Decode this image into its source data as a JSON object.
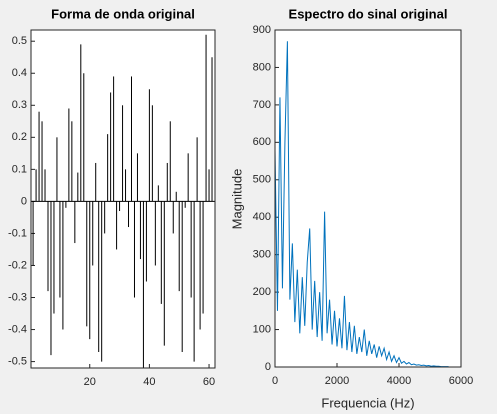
{
  "chart_data": [
    {
      "type": "stem",
      "title": "Forma de onda original",
      "color": "#000000",
      "x": [
        1,
        2,
        3,
        4,
        5,
        6,
        7,
        8,
        9,
        10,
        11,
        12,
        13,
        14,
        15,
        16,
        17,
        18,
        19,
        20,
        21,
        22,
        23,
        24,
        25,
        26,
        27,
        28,
        29,
        30,
        31,
        32,
        33,
        34,
        35,
        36,
        37,
        38,
        39,
        40,
        41,
        42,
        43,
        44,
        45,
        46,
        47,
        48,
        49,
        50,
        51,
        52,
        53,
        54,
        55,
        56,
        57,
        58,
        59,
        60,
        61
      ],
      "values": [
        -0.2,
        0.1,
        0.28,
        0.25,
        0.1,
        -0.28,
        -0.48,
        -0.35,
        0.2,
        -0.3,
        -0.4,
        -0.02,
        0.29,
        0.25,
        -0.13,
        0.09,
        0.49,
        0.4,
        -0.39,
        -0.43,
        -0.2,
        0.12,
        -0.47,
        -0.5,
        -0.1,
        0.21,
        0.34,
        0.39,
        -0.15,
        -0.03,
        0.3,
        0.1,
        -0.08,
        0.39,
        -0.3,
        0.15,
        -0.18,
        -0.52,
        -0.25,
        0.35,
        0.3,
        -0.2,
        0.05,
        -0.32,
        -0.45,
        0.12,
        0.25,
        -0.1,
        0.03,
        -0.28,
        -0.47,
        -0.02,
        0.15,
        -0.3,
        -0.5,
        0.2,
        -0.4,
        -0.35,
        0.52,
        0.1,
        0.45
      ],
      "xlim": [
        0.3,
        62
      ],
      "ylim": [
        -0.52,
        0.535
      ],
      "xticks": [
        20,
        40,
        60
      ],
      "yticks": [
        -0.5,
        -0.4,
        -0.3,
        -0.2,
        -0.1,
        0,
        0.1,
        0.2,
        0.3,
        0.4,
        0.5
      ]
    },
    {
      "type": "line",
      "title": "Espectro do sinal original",
      "color": "#0072bd",
      "xlabel": "Frequencia (Hz)",
      "ylabel": "Magnitude",
      "x": [
        0,
        80,
        160,
        240,
        320,
        400,
        480,
        560,
        640,
        720,
        800,
        880,
        960,
        1040,
        1120,
        1200,
        1280,
        1360,
        1440,
        1520,
        1600,
        1680,
        1760,
        1840,
        1920,
        2000,
        2080,
        2160,
        2240,
        2320,
        2400,
        2480,
        2560,
        2640,
        2720,
        2800,
        2880,
        2960,
        3040,
        3120,
        3200,
        3280,
        3360,
        3440,
        3520,
        3600,
        3680,
        3760,
        3840,
        3920,
        4000,
        4080,
        4160,
        4240,
        4320,
        4400,
        4480,
        4560,
        4640,
        4720,
        4800,
        4880,
        4960,
        5040,
        5120,
        5200,
        5280,
        5360,
        5440,
        5520,
        5600
      ],
      "values": [
        580,
        150,
        720,
        210,
        600,
        870,
        180,
        330,
        120,
        260,
        90,
        240,
        110,
        280,
        370,
        100,
        230,
        80,
        200,
        70,
        415,
        90,
        180,
        60,
        150,
        55,
        130,
        50,
        190,
        45,
        120,
        40,
        110,
        35,
        80,
        40,
        100,
        30,
        70,
        35,
        60,
        25,
        55,
        30,
        50,
        20,
        40,
        15,
        30,
        12,
        25,
        10,
        15,
        8,
        12,
        6,
        8,
        5,
        6,
        4,
        5,
        3,
        4,
        2,
        3,
        2,
        2,
        1,
        1,
        1,
        1
      ],
      "xlim": [
        0,
        6000
      ],
      "ylim": [
        0,
        900
      ],
      "xticks": [
        0,
        2000,
        4000,
        6000
      ],
      "yticks": [
        0,
        100,
        200,
        300,
        400,
        500,
        600,
        700,
        800,
        900
      ]
    }
  ]
}
